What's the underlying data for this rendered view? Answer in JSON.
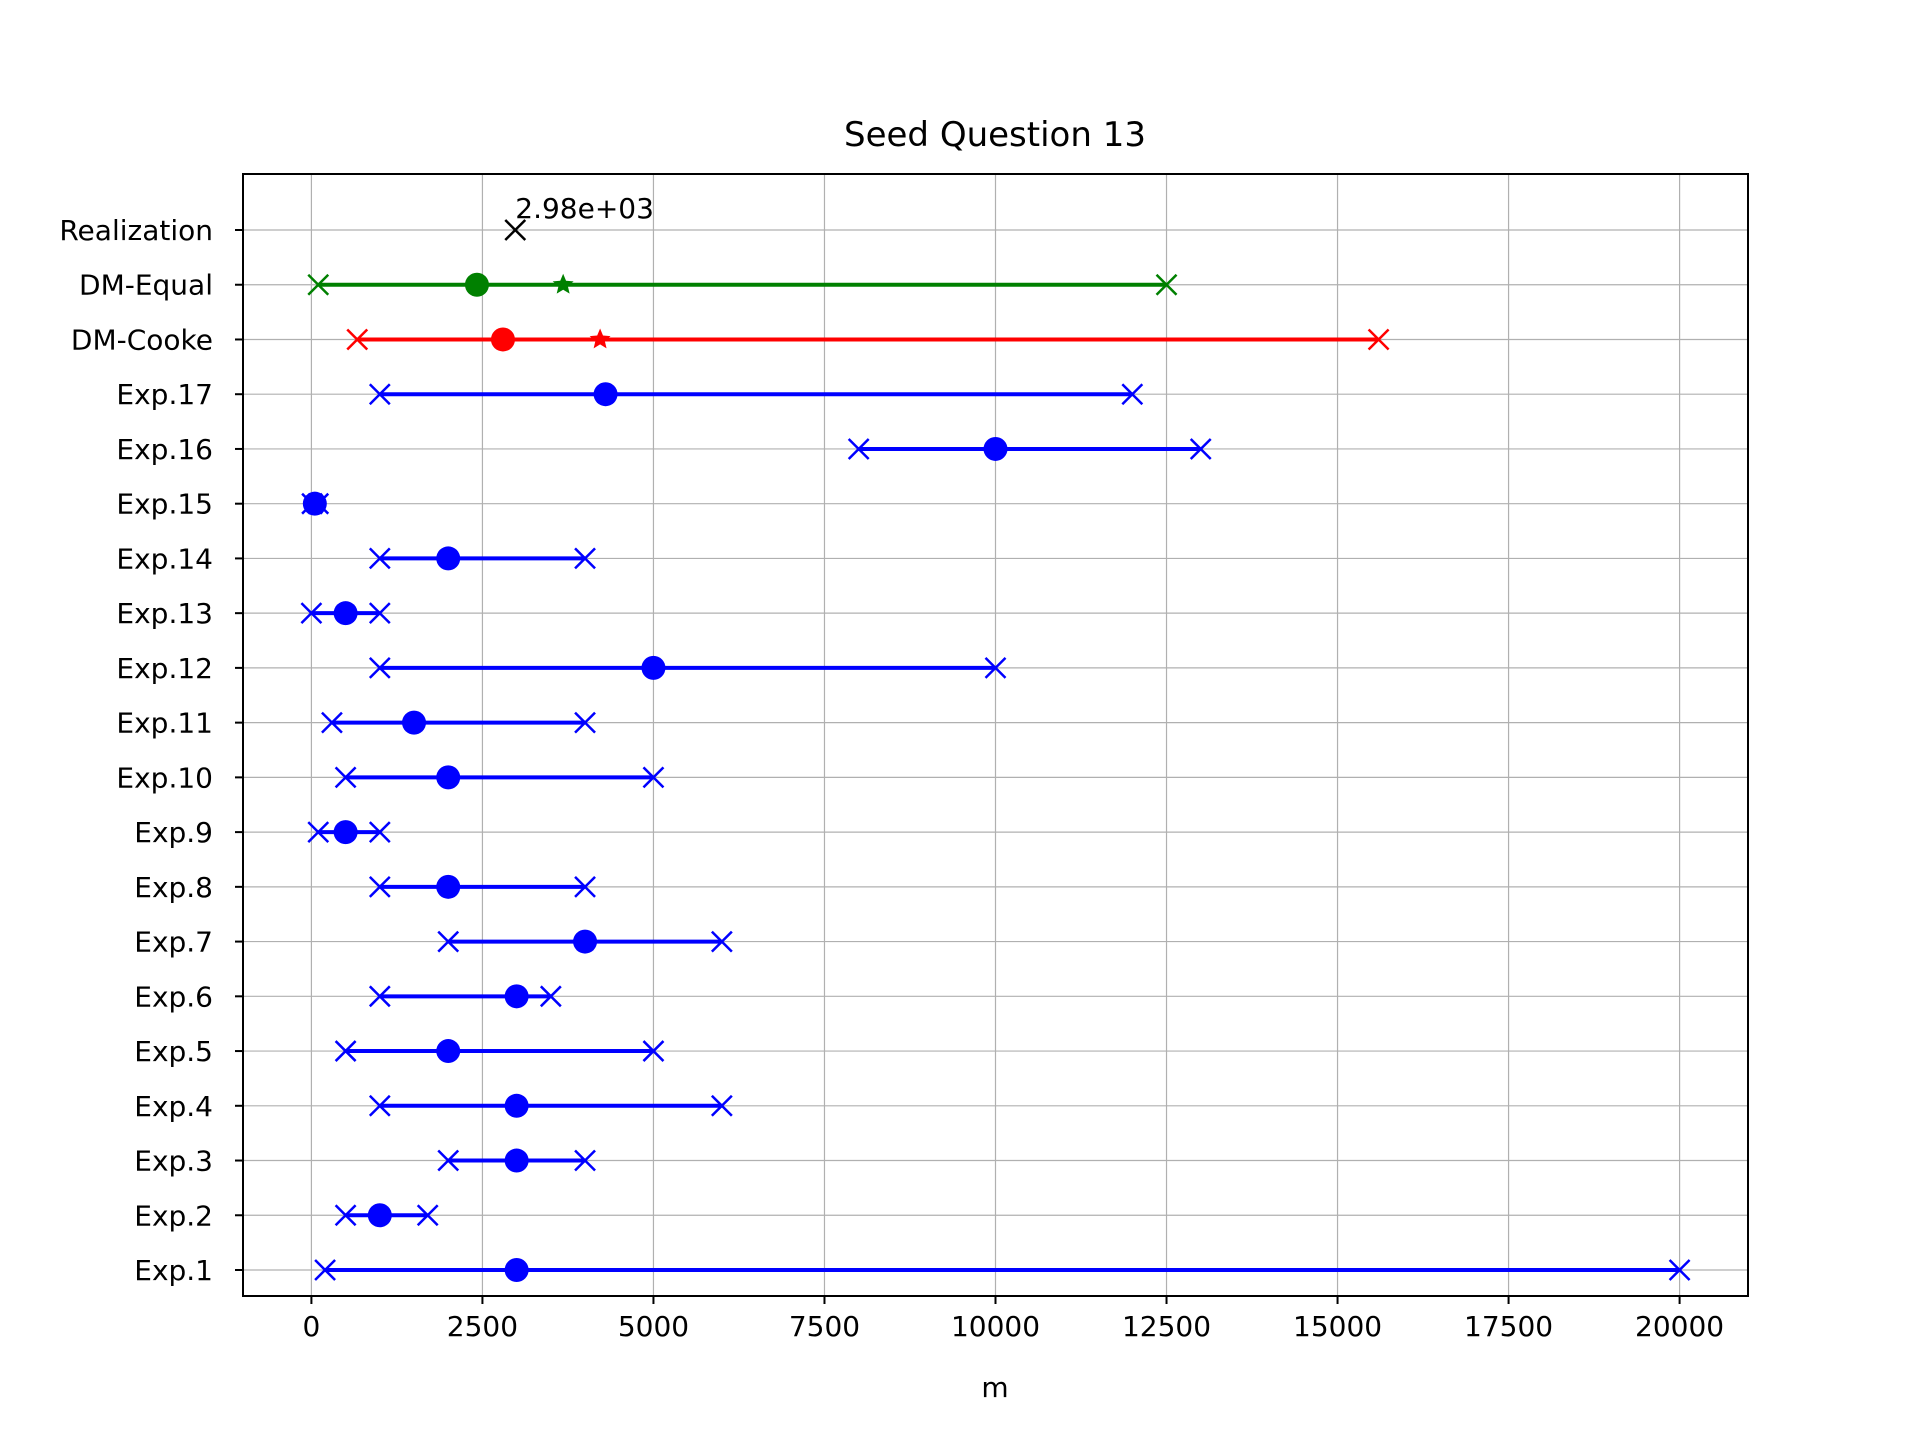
{
  "chart_data": {
    "type": "interval",
    "title": "Seed Question 13",
    "xlabel": "m",
    "ylabel": "",
    "xlim": [
      -1000,
      21000
    ],
    "xticks": [
      0,
      2500,
      5000,
      7500,
      10000,
      12500,
      15000,
      17500,
      20000
    ],
    "grid": true,
    "rows": [
      {
        "label": "Realization",
        "value": 2980,
        "annotation": "2.98e+03",
        "color": "#000000"
      },
      {
        "label": "DM-Equal",
        "low": 100,
        "median": 2420,
        "high": 12500,
        "mean": 3680,
        "color": "#008000"
      },
      {
        "label": "DM-Cooke",
        "low": 670,
        "median": 2800,
        "high": 15600,
        "mean": 4220,
        "color": "#ff0000"
      },
      {
        "label": "Exp.17",
        "low": 1000,
        "median": 4300,
        "high": 12000,
        "color": "#0000ff"
      },
      {
        "label": "Exp.16",
        "low": 8000,
        "median": 10000,
        "high": 13000,
        "color": "#0000ff"
      },
      {
        "label": "Exp.15",
        "low": 10,
        "median": 50,
        "high": 100,
        "color": "#0000ff"
      },
      {
        "label": "Exp.14",
        "low": 1000,
        "median": 2000,
        "high": 4000,
        "color": "#0000ff"
      },
      {
        "label": "Exp.13",
        "low": 0,
        "median": 500,
        "high": 1000,
        "color": "#0000ff"
      },
      {
        "label": "Exp.12",
        "low": 1000,
        "median": 5000,
        "high": 10000,
        "color": "#0000ff"
      },
      {
        "label": "Exp.11",
        "low": 300,
        "median": 1500,
        "high": 4000,
        "color": "#0000ff"
      },
      {
        "label": "Exp.10",
        "low": 500,
        "median": 2000,
        "high": 5000,
        "color": "#0000ff"
      },
      {
        "label": "Exp.9",
        "low": 100,
        "median": 500,
        "high": 1000,
        "color": "#0000ff"
      },
      {
        "label": "Exp.8",
        "low": 1000,
        "median": 2000,
        "high": 4000,
        "color": "#0000ff"
      },
      {
        "label": "Exp.7",
        "low": 2000,
        "median": 4000,
        "high": 6000,
        "color": "#0000ff"
      },
      {
        "label": "Exp.6",
        "low": 1000,
        "median": 3000,
        "high": 3500,
        "color": "#0000ff"
      },
      {
        "label": "Exp.5",
        "low": 500,
        "median": 2000,
        "high": 5000,
        "color": "#0000ff"
      },
      {
        "label": "Exp.4",
        "low": 1000,
        "median": 3000,
        "high": 6000,
        "color": "#0000ff"
      },
      {
        "label": "Exp.3",
        "low": 2000,
        "median": 3000,
        "high": 4000,
        "color": "#0000ff"
      },
      {
        "label": "Exp.2",
        "low": 500,
        "median": 1000,
        "high": 1700,
        "color": "#0000ff"
      },
      {
        "label": "Exp.1",
        "low": 200,
        "median": 3000,
        "high": 20000,
        "color": "#0000ff"
      }
    ]
  }
}
